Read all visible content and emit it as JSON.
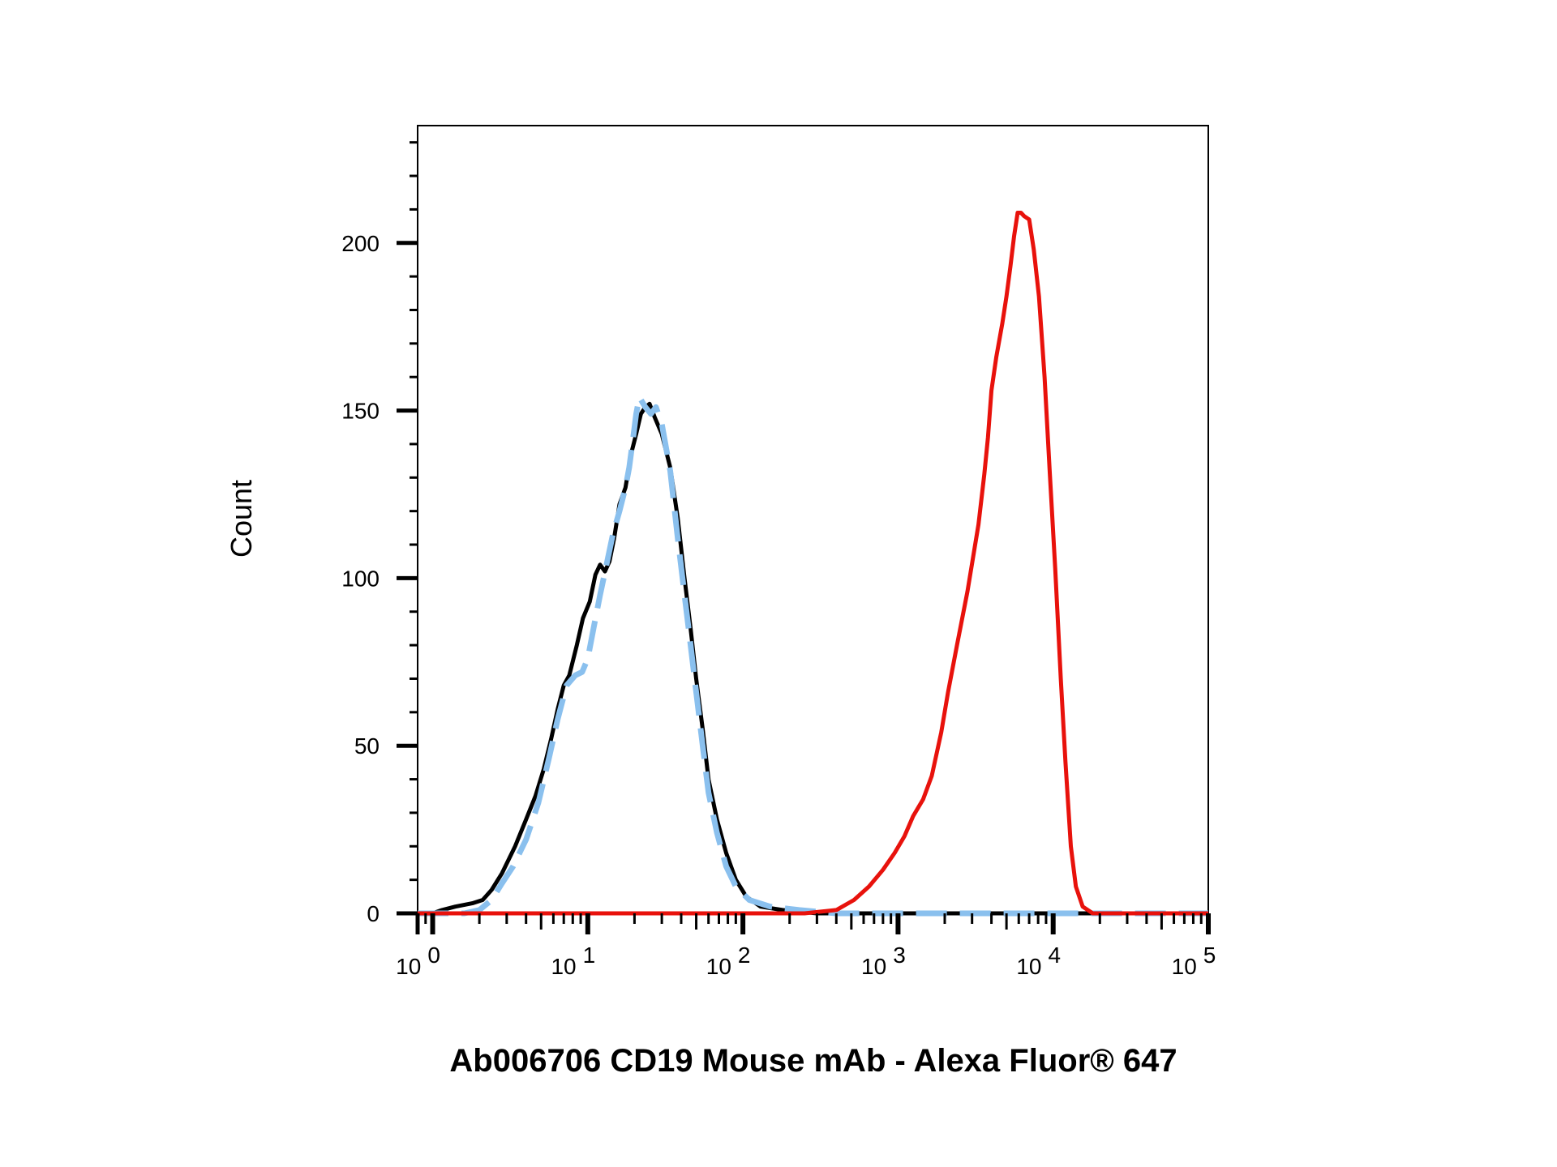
{
  "chart_data": {
    "type": "line",
    "title": "",
    "xlabel": "Ab006706 CD19 Mouse mAb - Alexa Fluor® 647",
    "ylabel": "Count",
    "x_scale": "log",
    "xlim": [
      0.8,
      100000
    ],
    "ylim": [
      0,
      235
    ],
    "grid": false,
    "legend": "none",
    "y_ticks": [
      {
        "value": 0,
        "label": "0"
      },
      {
        "value": 50,
        "label": "50"
      },
      {
        "value": 100,
        "label": "100"
      },
      {
        "value": 150,
        "label": "150"
      },
      {
        "value": 200,
        "label": "200"
      }
    ],
    "x_ticks": [
      {
        "value": 1,
        "base": "10",
        "exp": "0"
      },
      {
        "value": 10,
        "base": "10",
        "exp": "1"
      },
      {
        "value": 100,
        "base": "10",
        "exp": "2"
      },
      {
        "value": 1000,
        "base": "10",
        "exp": "3"
      },
      {
        "value": 10000,
        "base": "10",
        "exp": "4"
      },
      {
        "value": 100000,
        "base": "10",
        "exp": "5"
      }
    ],
    "series": [
      {
        "color": "#000000",
        "dash": "solid",
        "points": [
          [
            0.8,
            0
          ],
          [
            1.0,
            0
          ],
          [
            1.15,
            1
          ],
          [
            1.4,
            2
          ],
          [
            1.8,
            3
          ],
          [
            2.1,
            4
          ],
          [
            2.4,
            7
          ],
          [
            2.8,
            12
          ],
          [
            3.4,
            20
          ],
          [
            4.0,
            28
          ],
          [
            4.6,
            35
          ],
          [
            5.2,
            43
          ],
          [
            5.8,
            52
          ],
          [
            6.4,
            61
          ],
          [
            7.0,
            68
          ],
          [
            7.6,
            71
          ],
          [
            8.5,
            80
          ],
          [
            9.3,
            88
          ],
          [
            10.3,
            93
          ],
          [
            11.2,
            101
          ],
          [
            12.0,
            104
          ],
          [
            12.9,
            102
          ],
          [
            13.8,
            105
          ],
          [
            14.8,
            112
          ],
          [
            16.0,
            122
          ],
          [
            17.5,
            127
          ],
          [
            19.0,
            137
          ],
          [
            20.5,
            143
          ],
          [
            22.0,
            149
          ],
          [
            23.5,
            151
          ],
          [
            25.0,
            152
          ],
          [
            27.0,
            148
          ],
          [
            30.0,
            143
          ],
          [
            34.0,
            133
          ],
          [
            38.0,
            118
          ],
          [
            42.0,
            100
          ],
          [
            46.0,
            85
          ],
          [
            50.0,
            70
          ],
          [
            55.0,
            55
          ],
          [
            60.0,
            40
          ],
          [
            68.0,
            28
          ],
          [
            78.0,
            18
          ],
          [
            90.0,
            10
          ],
          [
            105.0,
            5
          ],
          [
            130.0,
            2
          ],
          [
            180.0,
            1
          ],
          [
            300.0,
            0
          ],
          [
            600.0,
            0
          ],
          [
            100000.0,
            0
          ]
        ]
      },
      {
        "color": "#8ac0ee",
        "dash": "dashed",
        "points": [
          [
            0.8,
            0
          ],
          [
            1.6,
            0
          ],
          [
            2.0,
            1
          ],
          [
            2.4,
            4
          ],
          [
            2.8,
            9
          ],
          [
            3.3,
            14
          ],
          [
            4.0,
            22
          ],
          [
            4.8,
            33
          ],
          [
            5.6,
            46
          ],
          [
            6.4,
            58
          ],
          [
            7.3,
            68
          ],
          [
            8.3,
            71
          ],
          [
            9.2,
            72
          ],
          [
            10.0,
            76
          ],
          [
            11.0,
            86
          ],
          [
            12.0,
            95
          ],
          [
            13.2,
            104
          ],
          [
            14.5,
            113
          ],
          [
            16.0,
            120
          ],
          [
            17.5,
            127
          ],
          [
            18.5,
            133
          ],
          [
            19.5,
            141
          ],
          [
            20.5,
            149
          ],
          [
            21.5,
            154
          ],
          [
            23.5,
            151
          ],
          [
            25.5,
            149
          ],
          [
            27.5,
            151
          ],
          [
            30.0,
            146
          ],
          [
            34.0,
            132
          ],
          [
            38.0,
            112
          ],
          [
            42.0,
            95
          ],
          [
            46.0,
            80
          ],
          [
            50.0,
            66
          ],
          [
            55.0,
            50
          ],
          [
            60.0,
            36
          ],
          [
            68.0,
            24
          ],
          [
            78.0,
            14
          ],
          [
            90.0,
            8
          ],
          [
            110.0,
            4
          ],
          [
            150.0,
            2
          ],
          [
            230.0,
            1
          ],
          [
            400.0,
            0
          ],
          [
            900.0,
            0
          ],
          [
            100000.0,
            0
          ]
        ]
      },
      {
        "color": "#e8120c",
        "dash": "solid",
        "points": [
          [
            0.8,
            0
          ],
          [
            250.0,
            0
          ],
          [
            400.0,
            1
          ],
          [
            520.0,
            4
          ],
          [
            650.0,
            8
          ],
          [
            800.0,
            13
          ],
          [
            950.0,
            18
          ],
          [
            1100.0,
            23
          ],
          [
            1250.0,
            29
          ],
          [
            1450.0,
            34
          ],
          [
            1650.0,
            41
          ],
          [
            1900.0,
            54
          ],
          [
            2100.0,
            66
          ],
          [
            2400.0,
            80
          ],
          [
            2800.0,
            96
          ],
          [
            3300.0,
            116
          ],
          [
            3600.0,
            131
          ],
          [
            3800.0,
            142
          ],
          [
            4000.0,
            156
          ],
          [
            4300.0,
            166
          ],
          [
            4700.0,
            176
          ],
          [
            5000.0,
            184
          ],
          [
            5300.0,
            193
          ],
          [
            5600.0,
            202
          ],
          [
            5900.0,
            209
          ],
          [
            6200.0,
            209
          ],
          [
            6500.0,
            208
          ],
          [
            7000.0,
            207
          ],
          [
            7500.0,
            198
          ],
          [
            8100.0,
            184
          ],
          [
            8800.0,
            160
          ],
          [
            9500.0,
            132
          ],
          [
            10300.0,
            103
          ],
          [
            11200.0,
            70
          ],
          [
            12000.0,
            45
          ],
          [
            13000.0,
            20
          ],
          [
            14000.0,
            8
          ],
          [
            15500.0,
            2
          ],
          [
            18000.0,
            0
          ],
          [
            100000.0,
            0
          ]
        ]
      }
    ]
  }
}
